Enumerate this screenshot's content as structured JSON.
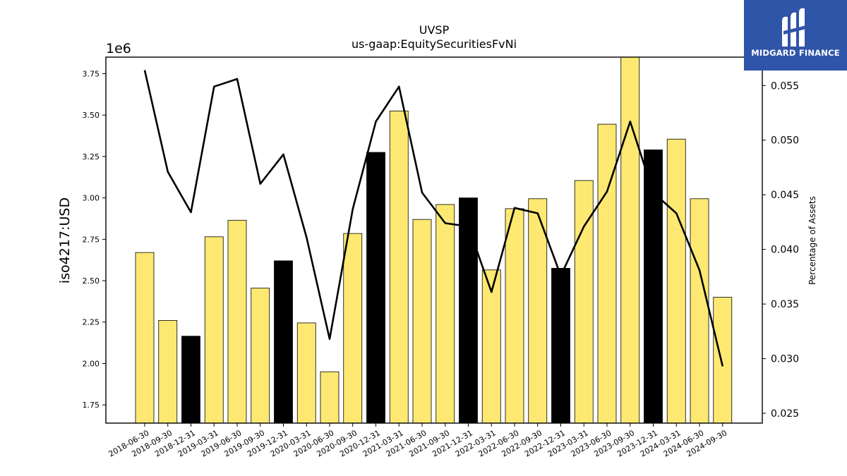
{
  "chart_data": {
    "type": "bar",
    "title": "UVSP",
    "subtitle": "us-gaap:EquitySecuritiesFvNi",
    "ylabel": "iso4217:USD",
    "y_offset_label": "1e6",
    "y2label": "Percentage of Assets",
    "ylim": [
      1.64,
      3.85
    ],
    "y2lim": [
      0.0241,
      0.0576
    ],
    "yticks": [
      "1.75",
      "2.00",
      "2.25",
      "2.50",
      "2.75",
      "3.00",
      "3.25",
      "3.50",
      "3.75"
    ],
    "y2ticks": [
      "0.025",
      "0.030",
      "0.035",
      "0.040",
      "0.045",
      "0.050",
      "0.055"
    ],
    "categories": [
      "2018-06-30",
      "2018-09-30",
      "2018-12-31",
      "2019-03-31",
      "2019-06-30",
      "2019-09-30",
      "2019-12-31",
      "2020-03-31",
      "2020-06-30",
      "2020-09-30",
      "2020-12-31",
      "2021-03-31",
      "2021-06-30",
      "2021-09-30",
      "2021-12-31",
      "2022-03-31",
      "2022-06-30",
      "2022-09-30",
      "2022-12-31",
      "2023-03-31",
      "2023-06-30",
      "2023-09-30",
      "2023-12-31",
      "2024-03-31",
      "2024-06-30",
      "2024-09-30"
    ],
    "series": [
      {
        "type": "bar",
        "values": [
          2.67,
          2.26,
          2.165,
          2.765,
          2.865,
          2.455,
          2.62,
          2.245,
          1.95,
          2.785,
          3.275,
          3.525,
          2.87,
          2.96,
          3.0,
          2.565,
          2.935,
          2.995,
          2.575,
          3.105,
          3.445,
          3.865,
          3.29,
          3.355,
          2.995,
          2.4
        ],
        "colors": [
          "#fde972",
          "#fde972",
          "#000000",
          "#fde972",
          "#fde972",
          "#fde972",
          "#000000",
          "#fde972",
          "#fde972",
          "#fde972",
          "#000000",
          "#fde972",
          "#fde972",
          "#fde972",
          "#000000",
          "#fde972",
          "#fde972",
          "#fde972",
          "#000000",
          "#fde972",
          "#fde972",
          "#fde972",
          "#000000",
          "#fde972",
          "#fde972",
          "#fde972"
        ]
      },
      {
        "type": "line",
        "axis": "right",
        "values": [
          0.0564,
          0.0471,
          0.0434,
          0.0549,
          0.0556,
          0.046,
          0.0487,
          0.0411,
          0.0318,
          0.0437,
          0.0517,
          0.0549,
          0.0452,
          0.0424,
          0.0421,
          0.0361,
          0.0438,
          0.0433,
          0.0376,
          0.0421,
          0.0453,
          0.0517,
          0.0452,
          0.0433,
          0.0381,
          0.0293
        ],
        "color": "#000000"
      }
    ],
    "grid": false,
    "colors": {
      "bar_fill": "#fde972",
      "bar_highlight": "#000000",
      "line": "#000000"
    }
  },
  "brand": {
    "name": "MIDGARD FINANCE",
    "background": "#2f55a8",
    "icon": "midgard-logo-icon"
  }
}
